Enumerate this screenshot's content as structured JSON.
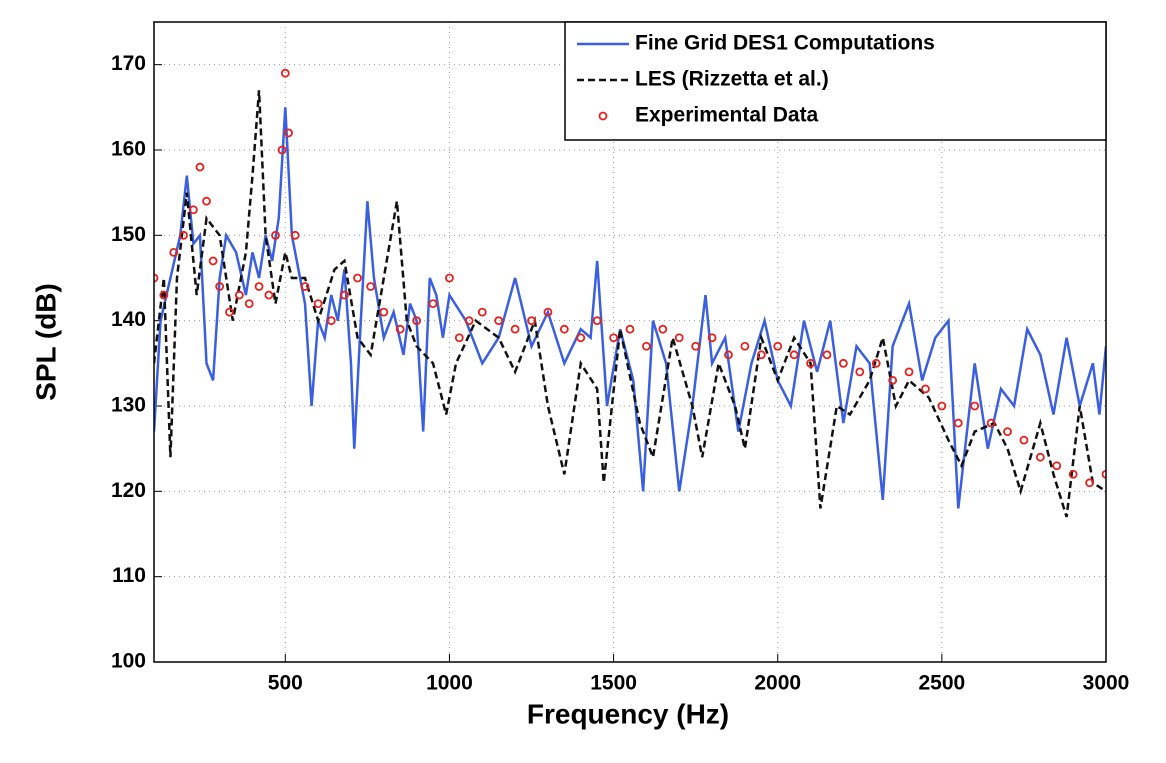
{
  "chart_data": {
    "type": "line",
    "xlabel": "Frequency (Hz)",
    "ylabel": "SPL (dB)",
    "xlim": [
      100,
      3000
    ],
    "xticks": [
      500,
      1000,
      1500,
      2000,
      2500,
      3000
    ],
    "ylim": [
      100,
      175
    ],
    "yticks": [
      100,
      110,
      120,
      130,
      140,
      150,
      160,
      170
    ],
    "grid": true,
    "legend": "upper right",
    "series": [
      {
        "name": "Fine Grid DES1 Computations",
        "color": "#3a5fe0",
        "style": "solid",
        "x": [
          100,
          120,
          150,
          180,
          200,
          220,
          240,
          260,
          280,
          300,
          320,
          350,
          380,
          400,
          420,
          440,
          460,
          480,
          500,
          520,
          540,
          560,
          580,
          600,
          620,
          640,
          660,
          680,
          700,
          710,
          730,
          750,
          770,
          800,
          830,
          860,
          880,
          900,
          920,
          940,
          960,
          980,
          1000,
          1050,
          1100,
          1150,
          1200,
          1250,
          1300,
          1350,
          1400,
          1430,
          1450,
          1480,
          1520,
          1560,
          1590,
          1620,
          1660,
          1700,
          1740,
          1780,
          1800,
          1840,
          1880,
          1920,
          1960,
          2000,
          2040,
          2080,
          2120,
          2160,
          2200,
          2240,
          2280,
          2320,
          2350,
          2400,
          2440,
          2480,
          2520,
          2550,
          2600,
          2640,
          2680,
          2720,
          2760,
          2800,
          2840,
          2880,
          2920,
          2960,
          2980,
          3000
        ],
        "values": [
          127,
          140,
          145,
          150,
          157,
          149,
          150,
          135,
          133,
          145,
          150,
          148,
          143,
          148,
          145,
          150,
          147,
          152,
          165,
          150,
          146,
          142,
          130,
          140,
          138,
          143,
          140,
          146,
          135,
          125,
          140,
          154,
          145,
          138,
          141,
          136,
          142,
          140,
          127,
          145,
          143,
          138,
          143,
          140,
          135,
          138,
          145,
          137,
          141,
          135,
          139,
          138,
          147,
          130,
          139,
          133,
          120,
          140,
          135,
          120,
          130,
          143,
          135,
          138,
          127,
          135,
          140,
          133,
          130,
          140,
          134,
          140,
          128,
          137,
          135,
          119,
          137,
          142,
          133,
          138,
          140,
          118,
          135,
          125,
          132,
          130,
          139,
          136,
          129,
          138,
          130,
          135,
          129,
          137
        ]
      },
      {
        "name": "LES (Rizzetta et al.)",
        "color": "#111111",
        "style": "dashed",
        "x": [
          100,
          130,
          150,
          170,
          200,
          230,
          260,
          300,
          340,
          380,
          400,
          420,
          440,
          470,
          500,
          520,
          560,
          600,
          650,
          680,
          720,
          760,
          800,
          840,
          870,
          900,
          950,
          990,
          1020,
          1080,
          1150,
          1200,
          1260,
          1300,
          1350,
          1400,
          1450,
          1470,
          1520,
          1580,
          1620,
          1680,
          1740,
          1770,
          1820,
          1870,
          1900,
          1950,
          2000,
          2050,
          2100,
          2130,
          2180,
          2220,
          2280,
          2320,
          2360,
          2400,
          2460,
          2520,
          2560,
          2600,
          2660,
          2700,
          2740,
          2800,
          2840,
          2880,
          2920,
          2960,
          3000
        ],
        "values": [
          135,
          145,
          124,
          145,
          155,
          143,
          152,
          150,
          140,
          148,
          157,
          167,
          150,
          142,
          148,
          145,
          145,
          140,
          146,
          147,
          138,
          136,
          145,
          154,
          140,
          137,
          135,
          129,
          135,
          140,
          138,
          134,
          140,
          130,
          122,
          135,
          132,
          121,
          139,
          128,
          124,
          138,
          130,
          124,
          135,
          130,
          125,
          138,
          133,
          138,
          135,
          118,
          130,
          129,
          133,
          138,
          130,
          133,
          131,
          126,
          123,
          127,
          128,
          125,
          120,
          128,
          122,
          117,
          130,
          121,
          120
        ]
      },
      {
        "name": "Experimental Data",
        "color": "#e8211c",
        "style": "markers",
        "x": [
          100,
          130,
          160,
          190,
          220,
          240,
          260,
          280,
          300,
          330,
          360,
          390,
          420,
          450,
          470,
          490,
          500,
          510,
          530,
          560,
          600,
          640,
          680,
          720,
          760,
          800,
          850,
          900,
          950,
          1000,
          1030,
          1060,
          1100,
          1150,
          1200,
          1250,
          1300,
          1350,
          1400,
          1450,
          1500,
          1550,
          1600,
          1650,
          1700,
          1750,
          1800,
          1850,
          1900,
          1950,
          2000,
          2050,
          2100,
          2150,
          2200,
          2250,
          2300,
          2350,
          2400,
          2450,
          2500,
          2550,
          2600,
          2650,
          2700,
          2750,
          2800,
          2850,
          2900,
          2950,
          3000
        ],
        "values": [
          145,
          143,
          148,
          150,
          153,
          158,
          154,
          147,
          144,
          141,
          143,
          142,
          144,
          143,
          150,
          160,
          169,
          162,
          150,
          144,
          142,
          140,
          143,
          145,
          144,
          141,
          139,
          140,
          142,
          145,
          138,
          140,
          141,
          140,
          139,
          140,
          141,
          139,
          138,
          140,
          138,
          139,
          137,
          139,
          138,
          137,
          138,
          136,
          137,
          136,
          137,
          136,
          135,
          136,
          135,
          134,
          135,
          133,
          134,
          132,
          130,
          128,
          130,
          128,
          127,
          126,
          124,
          123,
          122,
          121,
          122
        ]
      }
    ]
  }
}
